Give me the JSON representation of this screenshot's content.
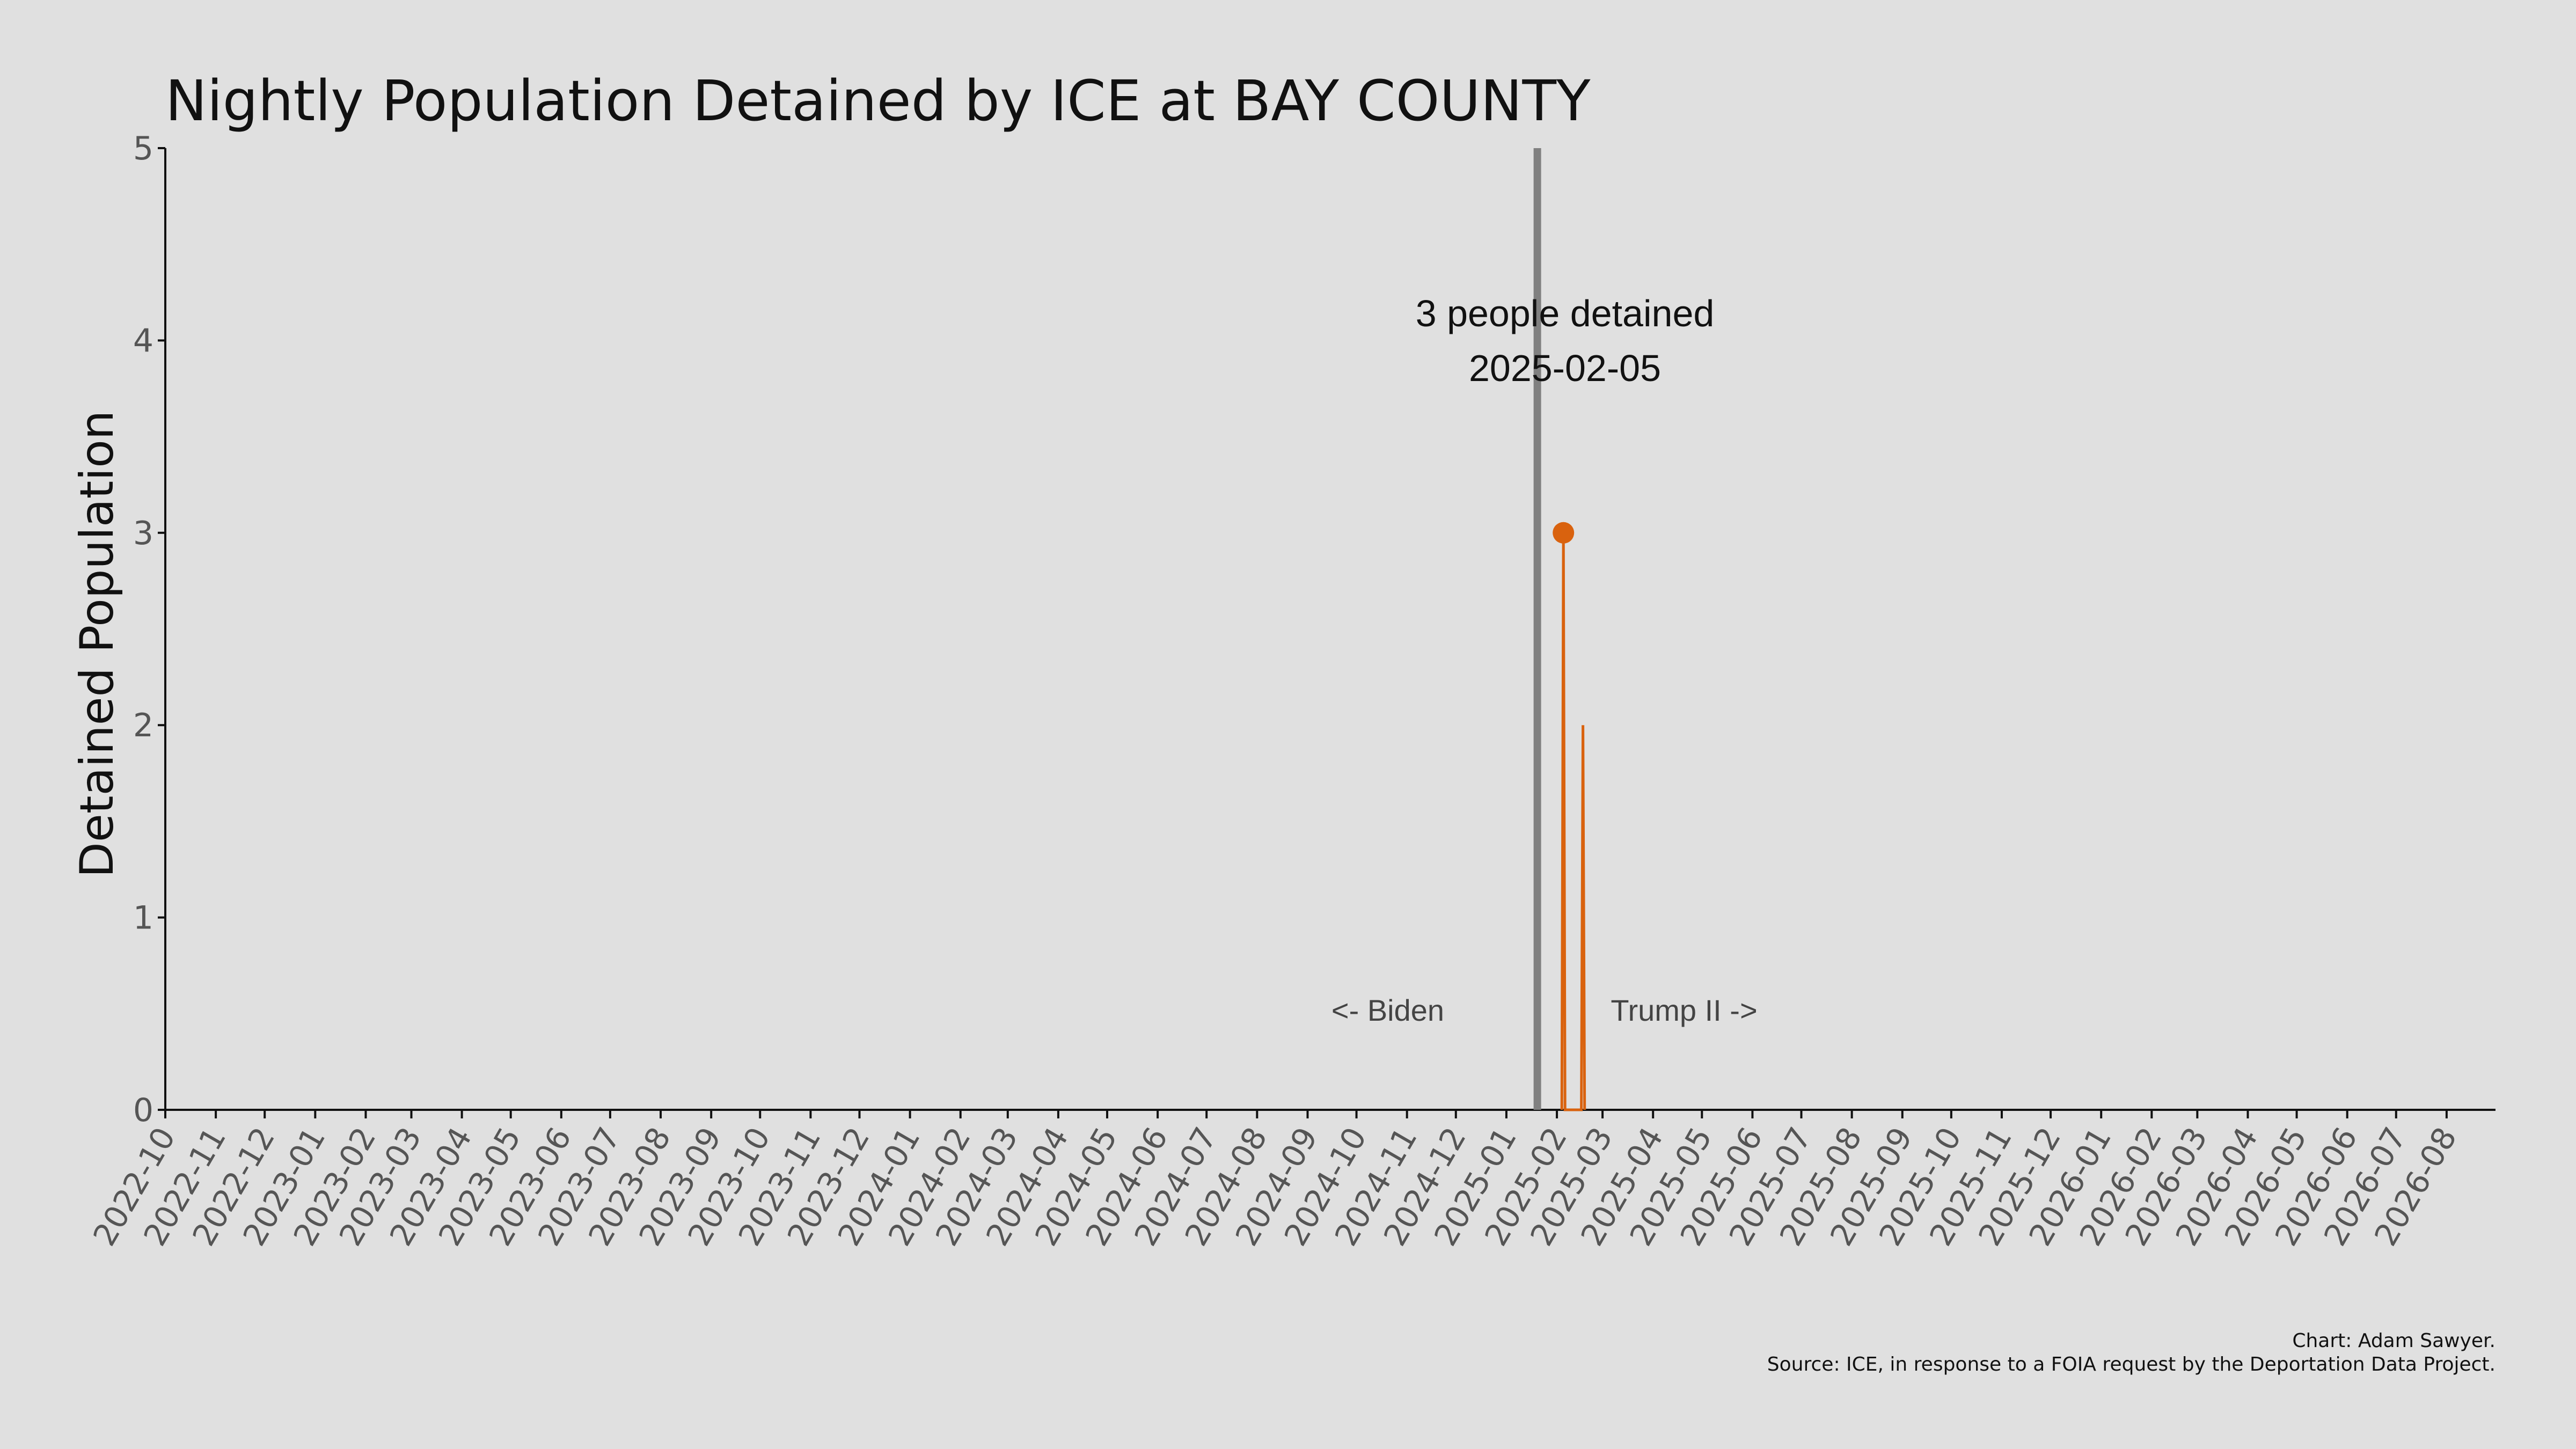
{
  "chart_data": {
    "type": "line",
    "title": "Nightly Population Detained by ICE at BAY COUNTY",
    "ylabel": "Detained Population",
    "xlabel": "",
    "ylim": [
      0,
      5
    ],
    "yticks": [
      "0",
      "1",
      "2",
      "3",
      "4",
      "5"
    ],
    "xlim": [
      "2022-10-01",
      "2026-08-31"
    ],
    "xticks": [
      "2022-10",
      "2022-11",
      "2022-12",
      "2023-01",
      "2023-02",
      "2023-03",
      "2023-04",
      "2023-05",
      "2023-06",
      "2023-07",
      "2023-08",
      "2023-09",
      "2023-10",
      "2023-11",
      "2023-12",
      "2024-01",
      "2024-02",
      "2024-03",
      "2024-04",
      "2024-05",
      "2024-06",
      "2024-07",
      "2024-08",
      "2024-09",
      "2024-10",
      "2024-11",
      "2024-12",
      "2025-01",
      "2025-02",
      "2025-03",
      "2025-04",
      "2025-05",
      "2025-06",
      "2025-07",
      "2025-08",
      "2025-09",
      "2025-10",
      "2025-11",
      "2025-12",
      "2026-01",
      "2026-02",
      "2026-03",
      "2026-04",
      "2026-05",
      "2026-06",
      "2026-07",
      "2026-08"
    ],
    "series": [
      {
        "color": "#d9620e",
        "points": [
          {
            "x": "2025-02-04",
            "y": 0
          },
          {
            "x": "2025-02-05",
            "y": 3
          },
          {
            "x": "2025-02-06",
            "y": 0
          },
          {
            "x": "2025-02-16",
            "y": 0
          },
          {
            "x": "2025-02-17",
            "y": 2
          },
          {
            "x": "2025-02-18",
            "y": 0
          }
        ]
      }
    ],
    "highlight": {
      "x": "2025-02-05",
      "y": 3,
      "color": "#d9620e"
    },
    "divider": {
      "x": "2025-01-20",
      "color": "#808080"
    },
    "annotation": {
      "line1": "3 people detained",
      "line2": "2025-02-05"
    },
    "era_labels": {
      "left": "<- Biden",
      "right": "Trump II ->"
    },
    "grid": false
  },
  "credits": {
    "line1": "Chart: Adam Sawyer.",
    "line2": "Source: ICE, in response to a FOIA request by the Deportation Data Project."
  }
}
